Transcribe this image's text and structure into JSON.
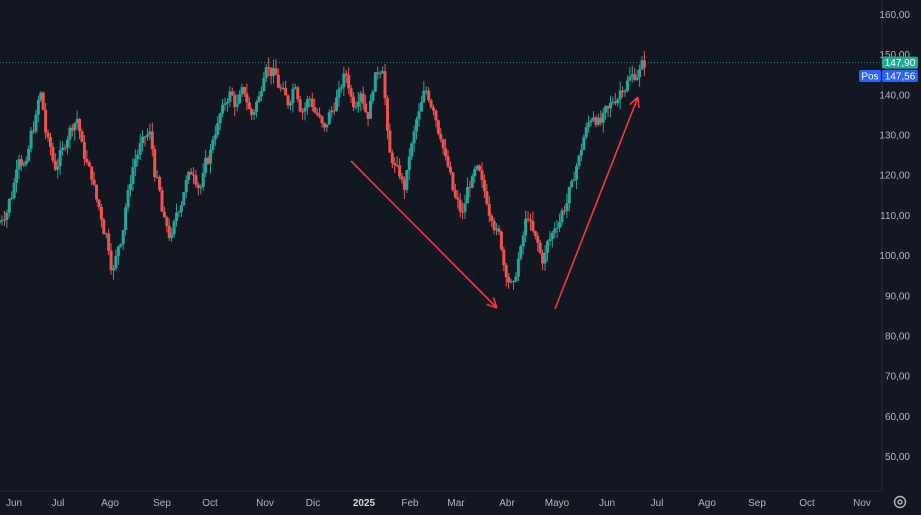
{
  "colors": {
    "background": "#131722",
    "up": "#26a69a",
    "down": "#ef5350",
    "arrow": "#f23645",
    "price_line": "#2a8c8c",
    "last_price_tag": "#22ab94",
    "pos_tag": "#2962ff",
    "axis_text": "#b2b5be"
  },
  "price_axis": {
    "ticks": [
      "160,00",
      "150,00",
      "140,00",
      "130,00",
      "120,00",
      "110,00",
      "100,00",
      "90,00",
      "80,00",
      "70,00",
      "60,00",
      "50,00"
    ]
  },
  "time_axis": {
    "labels": [
      "Jun",
      "Jul",
      "Ago",
      "Sep",
      "Oct",
      "Nov",
      "Dic",
      "2025",
      "Feb",
      "Mar",
      "Abr",
      "Mayo",
      "Jun",
      "Jul",
      "Ago",
      "Sep",
      "Oct",
      "Nov"
    ],
    "bold_label": "2025"
  },
  "tags": {
    "last_price": "147,90",
    "pos_label": "Pos",
    "pos_value": "147,56"
  },
  "icons": {
    "settings": "gear-icon"
  },
  "chart_data": {
    "type": "candlestick",
    "ylim": [
      45,
      165
    ],
    "y_ticks": [
      160,
      150,
      140,
      130,
      120,
      110,
      100,
      90,
      80,
      70,
      60,
      50
    ],
    "last_price": 147.9,
    "position_price": 147.56,
    "x_ticks": [
      "Jun",
      "Jul",
      "Ago",
      "Sep",
      "Oct",
      "Nov",
      "Dic",
      "2025",
      "Feb",
      "Mar",
      "Abr",
      "Mayo",
      "Jun",
      "Jul",
      "Ago",
      "Sep",
      "Oct",
      "Nov"
    ],
    "series": [
      {
        "points": [
          [
            "Jun 2024",
            110
          ],
          [
            "Jun 2024",
            115
          ],
          [
            "Jun 2024",
            125
          ],
          [
            "Jun 2024",
            122
          ],
          [
            "Jul 2024",
            132
          ],
          [
            "Jul 2024",
            140
          ],
          [
            "Jul 2024",
            128
          ],
          [
            "Jul 2024",
            122
          ],
          [
            "Jul 2024",
            126
          ],
          [
            "Jul 2024",
            131
          ],
          [
            "Jul 2024",
            134
          ],
          [
            "Jul 2024",
            125
          ],
          [
            "Ago 2024",
            120
          ],
          [
            "Ago 2024",
            112
          ],
          [
            "Ago 2024",
            105
          ],
          [
            "Ago 2024",
            96
          ],
          [
            "Ago 2024",
            104
          ],
          [
            "Ago 2024",
            115
          ],
          [
            "Ago 2024",
            124
          ],
          [
            "Sep 2024",
            128
          ],
          [
            "Sep 2024",
            130
          ],
          [
            "Sep 2024",
            118
          ],
          [
            "Sep 2024",
            108
          ],
          [
            "Sep 2024",
            104
          ],
          [
            "Sep 2024",
            112
          ],
          [
            "Sep 2024",
            118
          ],
          [
            "Oct 2024",
            121
          ],
          [
            "Oct 2024",
            117
          ],
          [
            "Oct 2024",
            124
          ],
          [
            "Oct 2024",
            131
          ],
          [
            "Oct 2024",
            136
          ],
          [
            "Oct 2024",
            140
          ],
          [
            "Oct 2024",
            137
          ],
          [
            "Oct 2024",
            141
          ],
          [
            "Nov 2024",
            135
          ],
          [
            "Nov 2024",
            139
          ],
          [
            "Nov 2024",
            148
          ],
          [
            "Nov 2024",
            145
          ],
          [
            "Nov 2024",
            141
          ],
          [
            "Nov 2024",
            138
          ],
          [
            "Nov 2024",
            143
          ],
          [
            "Dic 2024",
            136
          ],
          [
            "Dic 2024",
            139
          ],
          [
            "Dic 2024",
            135
          ],
          [
            "Dic 2024",
            131
          ],
          [
            "Dic 2024",
            136
          ],
          [
            "Dic 2024",
            140
          ],
          [
            "Dic 2024",
            145
          ],
          [
            "2025",
            138
          ],
          [
            "2025",
            141
          ],
          [
            "2025",
            135
          ],
          [
            "2025",
            144
          ],
          [
            "2025",
            147
          ],
          [
            "Feb 2025",
            125
          ],
          [
            "Feb 2025",
            121
          ],
          [
            "Feb 2025",
            117
          ],
          [
            "Feb 2025",
            127
          ],
          [
            "Feb 2025",
            135
          ],
          [
            "Feb 2025",
            141
          ],
          [
            "Feb 2025",
            137
          ],
          [
            "Mar 2025",
            130
          ],
          [
            "Mar 2025",
            122
          ],
          [
            "Mar 2025",
            114
          ],
          [
            "Mar 2025",
            110
          ],
          [
            "Mar 2025",
            118
          ],
          [
            "Mar 2025",
            121
          ],
          [
            "Mar 2025",
            116
          ],
          [
            "Abr 2025",
            110
          ],
          [
            "Abr 2025",
            105
          ],
          [
            "Abr 2025",
            96
          ],
          [
            "Abr 2025",
            92
          ],
          [
            "Abr 2025",
            101
          ],
          [
            "Abr 2025",
            110
          ],
          [
            "Abr 2025",
            104
          ],
          [
            "Abr 2025",
            99
          ],
          [
            "Mayo 2025",
            104
          ],
          [
            "Mayo 2025",
            108
          ],
          [
            "Mayo 2025",
            112
          ],
          [
            "Mayo 2025",
            117
          ],
          [
            "Mayo 2025",
            124
          ],
          [
            "Mayo 2025",
            131
          ],
          [
            "Mayo 2025",
            135
          ],
          [
            "Jun 2025",
            133
          ],
          [
            "Jun 2025",
            136
          ],
          [
            "Jun 2025",
            139
          ],
          [
            "Jun 2025",
            142
          ],
          [
            "Jun 2025",
            144
          ],
          [
            "Jun 2025",
            145
          ],
          [
            "Jun 2025",
            147.9
          ]
        ]
      }
    ]
  }
}
